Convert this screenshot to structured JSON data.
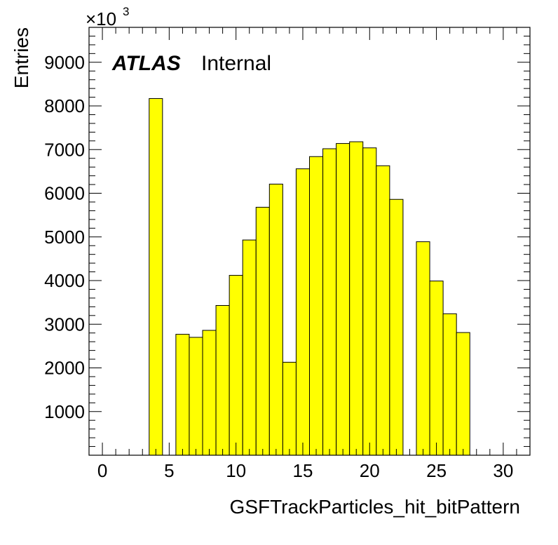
{
  "chart_data": {
    "type": "bar",
    "style": "histogram",
    "x_label": "GSFTrackParticles_hit_bitPattern",
    "y_label": "Entries",
    "y_exponent_label": "×10",
    "y_exponent_power": "3",
    "experiment_label": "ATLAS",
    "status_label": "Internal",
    "xlim": [
      -1,
      32
    ],
    "ylim": [
      0,
      9800
    ],
    "x_ticks": [
      0,
      5,
      10,
      15,
      20,
      25,
      30
    ],
    "y_ticks": [
      1000,
      2000,
      3000,
      4000,
      5000,
      6000,
      7000,
      8000,
      9000
    ],
    "bin_edges": [
      -0.5,
      0.5,
      1.5,
      2.5,
      3.5,
      4.5,
      5.5,
      6.5,
      7.5,
      8.5,
      9.5,
      10.5,
      11.5,
      12.5,
      13.5,
      14.5,
      15.5,
      16.5,
      17.5,
      18.5,
      19.5,
      20.5,
      21.5,
      22.5,
      23.5,
      24.5,
      25.5,
      26.5,
      27.5,
      28.5,
      29.5,
      30.5,
      31.5
    ],
    "values": [
      0,
      0,
      0,
      0,
      8170,
      0,
      2770,
      2700,
      2860,
      3430,
      4120,
      4930,
      5680,
      6210,
      2130,
      6560,
      6840,
      7020,
      7140,
      7180,
      7040,
      6630,
      5860,
      0,
      4890,
      3990,
      3240,
      2810,
      0,
      0,
      0,
      0
    ],
    "fill_color": "#ffff00",
    "line_color": "#000000",
    "grid": false
  }
}
